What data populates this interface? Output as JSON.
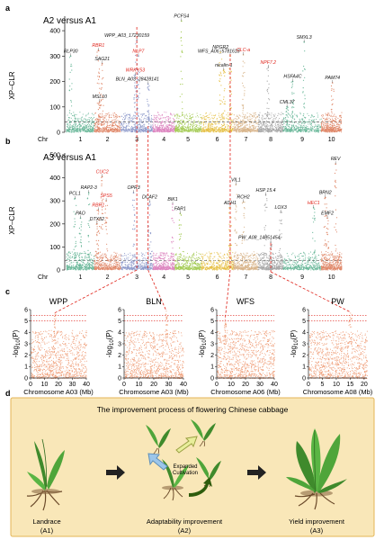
{
  "panel_letters": {
    "a": "a",
    "b": "b",
    "c": "c",
    "d": "d"
  },
  "colors": {
    "chr_palette": [
      "#6bb89a",
      "#e0896b",
      "#8f9bcb",
      "#dd86c0",
      "#a6cc58",
      "#e6c149",
      "#d8b48a",
      "#a7a7a7"
    ],
    "red_label": "#e0241b",
    "threshold_line": "#333333",
    "c_points": "#ee9a73",
    "c_threshold": "#e0241b",
    "d_background": "#f9e7b8",
    "d_border": "#e4b556",
    "arrow_blue": "#9cc6ea",
    "arrow_yellow": "#e8ee9b",
    "arrow_green": "#2e5c0c"
  },
  "chart_data": [
    {
      "type": "scatter",
      "id": "a",
      "title": "A2 versus A1",
      "ylabel": "XP–CLR",
      "ylim": [
        0,
        450
      ],
      "yticks": [
        0,
        100,
        200,
        300,
        400
      ],
      "xlabel_prefix": "Chr",
      "chromosomes": [
        "1",
        "2",
        "3",
        "4",
        "5",
        "6",
        "7",
        "8",
        "9",
        "10"
      ],
      "threshold": 40,
      "peaks": [
        {
          "label": "PCFS4",
          "chr": 5,
          "pos": 0.25,
          "value": 438,
          "red": false
        },
        {
          "label": "WPP_A03_17230159",
          "chr": 3,
          "pos": 0.5,
          "value": 362,
          "red": false,
          "marker": true
        },
        {
          "label": "SMXL3",
          "chr": 9,
          "pos": 0.55,
          "value": 355,
          "red": false
        },
        {
          "label": "RLP30",
          "chr": 1,
          "pos": 0.15,
          "value": 300,
          "red": false
        },
        {
          "label": "RBR1",
          "chr": 2,
          "pos": 0.15,
          "value": 322,
          "red": true
        },
        {
          "label": "SAG21",
          "chr": 2,
          "pos": 0.3,
          "value": 270,
          "red": false
        },
        {
          "label": "NPGR2",
          "chr": 6,
          "pos": 0.6,
          "value": 315,
          "red": false
        },
        {
          "label": "WFS_A06_5781618",
          "chr": 6,
          "pos": 0.9,
          "value": 300,
          "red": false,
          "marker": true
        },
        {
          "label": "nicalin-1",
          "chr": 6,
          "pos": 0.7,
          "value": 245,
          "red": false
        },
        {
          "label": "CLC-a",
          "chr": 7,
          "pos": 0.4,
          "value": 305,
          "red": true
        },
        {
          "label": "NLP7",
          "chr": 3,
          "pos": 0.55,
          "value": 300,
          "red": true
        },
        {
          "label": "NPF7.2",
          "chr": 8,
          "pos": 0.4,
          "value": 255,
          "red": true
        },
        {
          "label": "WRKY53",
          "chr": 3,
          "pos": 0.45,
          "value": 225,
          "red": true
        },
        {
          "label": "BLN_A03_28428141",
          "chr": 3,
          "pos": 0.85,
          "value": 190,
          "red": false,
          "marker": true
        },
        {
          "label": "HSFA4C",
          "chr": 9,
          "pos": 0.25,
          "value": 200,
          "red": false
        },
        {
          "label": "PAM74",
          "chr": 10,
          "pos": 0.55,
          "value": 195,
          "red": false
        },
        {
          "label": "MSL10",
          "chr": 2,
          "pos": 0.2,
          "value": 120,
          "red": false
        },
        {
          "label": "CML37",
          "chr": 9,
          "pos": 0.1,
          "value": 100,
          "red": false
        }
      ]
    },
    {
      "type": "scatter",
      "id": "b",
      "title": "A3 versus A1",
      "ylabel": "XP–CLR",
      "ylim": [
        0,
        500
      ],
      "yticks": [
        0,
        100,
        200,
        300,
        400,
        500
      ],
      "xlabel_prefix": "Chr",
      "chromosomes": [
        "1",
        "2",
        "3",
        "4",
        "5",
        "6",
        "7",
        "8",
        "9",
        "10"
      ],
      "threshold": 40,
      "peaks": [
        {
          "label": "REV",
          "chr": 10,
          "pos": 0.7,
          "value": 460,
          "red": false
        },
        {
          "label": "CUC2",
          "chr": 2,
          "pos": 0.3,
          "value": 405,
          "red": true
        },
        {
          "label": "RAP2-3",
          "chr": 1,
          "pos": 0.8,
          "value": 335,
          "red": false
        },
        {
          "label": "PCL1",
          "chr": 1,
          "pos": 0.3,
          "value": 310,
          "red": false
        },
        {
          "label": "SPS5",
          "chr": 2,
          "pos": 0.45,
          "value": 300,
          "red": true
        },
        {
          "label": "RBR1",
          "chr": 2,
          "pos": 0.15,
          "value": 260,
          "red": true
        },
        {
          "label": "PAO",
          "chr": 1,
          "pos": 0.5,
          "value": 225,
          "red": false
        },
        {
          "label": "DTX52",
          "chr": 2,
          "pos": 0.1,
          "value": 200,
          "red": false
        },
        {
          "label": "OPR3",
          "chr": 3,
          "pos": 0.4,
          "value": 335,
          "red": false
        },
        {
          "label": "DCAF2",
          "chr": 3,
          "pos": 0.9,
          "value": 295,
          "red": false
        },
        {
          "label": "BIK1",
          "chr": 4,
          "pos": 0.9,
          "value": 285,
          "red": false
        },
        {
          "label": "FAR1",
          "chr": 5,
          "pos": 0.2,
          "value": 245,
          "red": false
        },
        {
          "label": "VIL1",
          "chr": 7,
          "pos": 0.1,
          "value": 370,
          "red": false
        },
        {
          "label": "RCH2",
          "chr": 7,
          "pos": 0.4,
          "value": 295,
          "red": false
        },
        {
          "label": "HSP 15.4",
          "chr": 8,
          "pos": 0.3,
          "value": 325,
          "red": false
        },
        {
          "label": "ADH1",
          "chr": 6,
          "pos": 0.9,
          "value": 270,
          "red": false
        },
        {
          "label": "LOX3",
          "chr": 8,
          "pos": 0.9,
          "value": 250,
          "red": false
        },
        {
          "label": "PW_A08_14851454",
          "chr": 8,
          "pos": 0.5,
          "value": 120,
          "red": false,
          "marker": true
        },
        {
          "label": "BRN2",
          "chr": 10,
          "pos": 0.2,
          "value": 315,
          "red": false
        },
        {
          "label": "HEC1",
          "chr": 9,
          "pos": 0.8,
          "value": 270,
          "red": true
        },
        {
          "label": "EMF2",
          "chr": 10,
          "pos": 0.3,
          "value": 225,
          "red": false
        }
      ]
    },
    {
      "type": "scatter",
      "id": "c1",
      "title": "WPP",
      "xlabel": "Chromosome A03 (Mb)",
      "ylabel": "-log10(P)",
      "xlim": [
        0,
        40
      ],
      "xticks": [
        0,
        10,
        20,
        30,
        40
      ],
      "ylim": [
        0,
        6
      ],
      "yticks": [
        0,
        1,
        2,
        3,
        4,
        5,
        6
      ],
      "thresholds": [
        5.0,
        5.5
      ],
      "peak": {
        "x": 17.2,
        "y": 5.7
      }
    },
    {
      "type": "scatter",
      "id": "c2",
      "title": "BLN",
      "xlabel": "Chromosome A03 (Mb)",
      "ylabel": "-log10(P)",
      "xlim": [
        0,
        40
      ],
      "xticks": [
        0,
        10,
        20,
        30,
        40
      ],
      "ylim": [
        0,
        6
      ],
      "yticks": [
        0,
        1,
        2,
        3,
        4,
        5,
        6
      ],
      "thresholds": [
        5.0,
        5.5
      ],
      "peak": {
        "x": 28.4,
        "y": 5.9
      }
    },
    {
      "type": "scatter",
      "id": "c3",
      "title": "WFS",
      "xlabel": "Chromosome A06 (Mb)",
      "ylabel": "-log10(P)",
      "xlim": [
        0,
        40
      ],
      "xticks": [
        0,
        10,
        20,
        30,
        40
      ],
      "ylim": [
        0,
        6
      ],
      "yticks": [
        0,
        1,
        2,
        3,
        4,
        5,
        6
      ],
      "thresholds": [
        5.0,
        5.5
      ],
      "peak": {
        "x": 5.8,
        "y": 5.1
      }
    },
    {
      "type": "scatter",
      "id": "c4",
      "title": "PW",
      "xlabel": "Chromosome A08 (Mb)",
      "ylabel": "-log10(P)",
      "xlim": [
        0,
        21
      ],
      "xticks": [
        0,
        5,
        10,
        15,
        20
      ],
      "ylim": [
        0,
        6
      ],
      "yticks": [
        0,
        1,
        2,
        3,
        4,
        5,
        6
      ],
      "thresholds": [
        5.0,
        5.5
      ],
      "peak": {
        "x": 14.9,
        "y": 5.8
      }
    }
  ],
  "panel_d": {
    "title": "The improvement process of flowering Chinese cabbage",
    "stages": [
      {
        "label": "Landrace",
        "sub": "(A1)"
      },
      {
        "label": "Adaptability improvement",
        "sub": "(A2)"
      },
      {
        "label": "Yield improvement",
        "sub": "(A3)"
      }
    ],
    "expanded_label": "Expanded\nCultivation"
  }
}
